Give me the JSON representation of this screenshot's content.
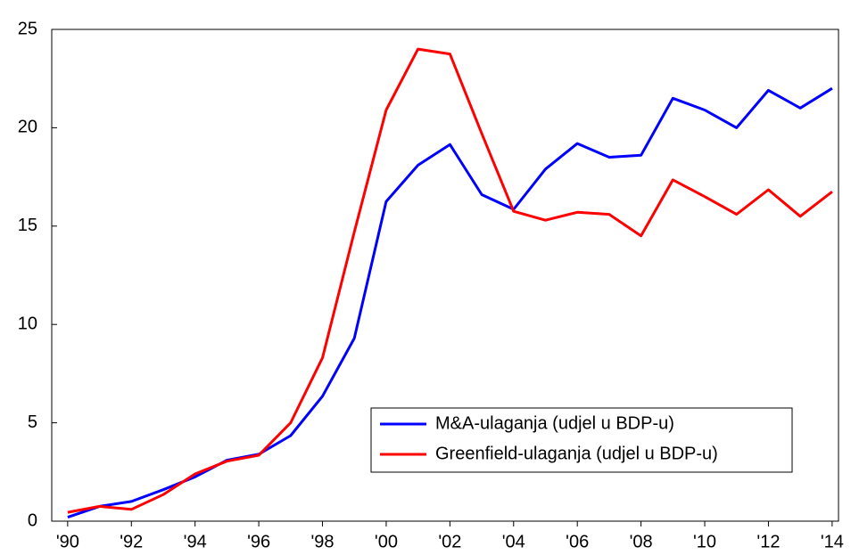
{
  "chart_data": {
    "type": "line",
    "x": [
      1990,
      1991,
      1992,
      1993,
      1994,
      1995,
      1996,
      1997,
      1998,
      1999,
      2000,
      2001,
      2002,
      2003,
      2004,
      2005,
      2006,
      2007,
      2008,
      2009,
      2010,
      2011,
      2012,
      2013,
      2014
    ],
    "series": [
      {
        "name": "M&A-ulaganja (udjel u BDP-u)",
        "color": "#0000ff",
        "values": [
          0.2,
          0.75,
          1.0,
          1.6,
          2.25,
          3.1,
          3.4,
          4.35,
          6.35,
          9.3,
          16.25,
          18.1,
          19.15,
          16.6,
          15.85,
          17.9,
          19.2,
          18.5,
          18.6,
          21.5,
          20.9,
          20.0,
          21.9,
          21.0,
          22.0
        ]
      },
      {
        "name": "Greenfield-ulaganja (udjel u BDP-u)",
        "color": "#ff0000",
        "values": [
          0.45,
          0.75,
          0.6,
          1.35,
          2.4,
          3.05,
          3.35,
          5.0,
          8.3,
          14.7,
          20.9,
          24.0,
          23.75,
          19.7,
          15.75,
          15.3,
          15.7,
          15.6,
          14.5,
          17.35,
          16.5,
          15.6,
          16.85,
          15.5,
          16.75
        ]
      }
    ],
    "xlim": [
      1989.5,
      2014.2
    ],
    "xticks": [
      {
        "value": 1990,
        "label": "'90"
      },
      {
        "value": 1992,
        "label": "'92"
      },
      {
        "value": 1994,
        "label": "'94"
      },
      {
        "value": 1996,
        "label": "'96"
      },
      {
        "value": 1998,
        "label": "'98"
      },
      {
        "value": 2000,
        "label": "'00"
      },
      {
        "value": 2002,
        "label": "'02"
      },
      {
        "value": 2004,
        "label": "'04"
      },
      {
        "value": 2006,
        "label": "'06"
      },
      {
        "value": 2008,
        "label": "'08"
      },
      {
        "value": 2010,
        "label": "'10"
      },
      {
        "value": 2012,
        "label": "'12"
      },
      {
        "value": 2014,
        "label": "'14"
      }
    ],
    "ylim": [
      0,
      25
    ],
    "yticks": [
      0,
      5,
      10,
      15,
      20,
      25
    ],
    "legend": "lower-right"
  }
}
